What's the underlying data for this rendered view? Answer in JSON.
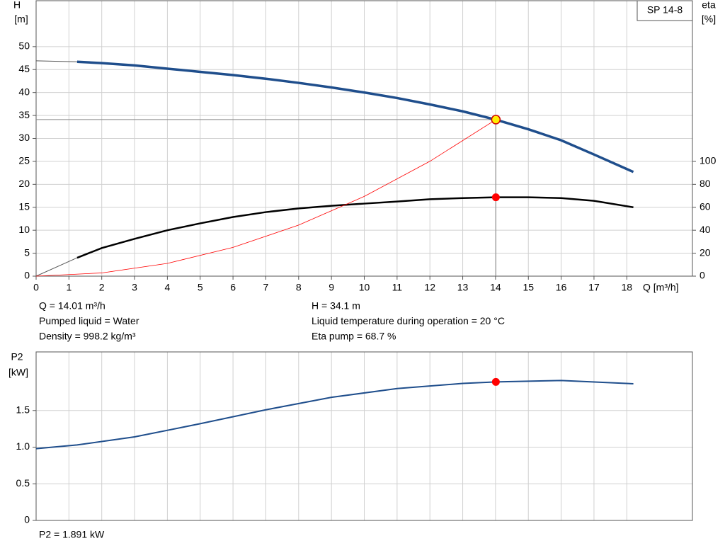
{
  "chart_data": [
    {
      "type": "line",
      "label": "SP 14-8",
      "ylabel": "H",
      "yunit": "[m]",
      "y2label": "eta",
      "y2unit": "[%]",
      "xlabel": "Q [m³/h]",
      "xlim": [
        0,
        20
      ],
      "xticks": [
        0,
        1,
        2,
        3,
        4,
        5,
        6,
        7,
        8,
        9,
        10,
        11,
        12,
        13,
        14,
        15,
        16,
        17,
        18
      ],
      "ylim": [
        0,
        60
      ],
      "yticks": [
        0,
        5,
        10,
        15,
        20,
        25,
        30,
        35,
        40,
        45,
        50
      ],
      "y2lim": [
        0,
        240
      ],
      "y2ticks": [
        0,
        20,
        40,
        60,
        80,
        100
      ],
      "grid": true,
      "series": [
        {
          "color": "#555555",
          "width": 1,
          "x": [
            0,
            1.25
          ],
          "values": [
            46.9,
            46.7
          ]
        },
        {
          "color": "#1f4e8c",
          "width": 3.5,
          "x": [
            1.25,
            2,
            3,
            4,
            5,
            6,
            7,
            8,
            9,
            10,
            11,
            12,
            13,
            14,
            15,
            16,
            17,
            18.2
          ],
          "values": [
            46.7,
            46.4,
            45.9,
            45.2,
            44.5,
            43.8,
            43.0,
            42.1,
            41.1,
            40.0,
            38.8,
            37.4,
            35.9,
            34.1,
            32.0,
            29.6,
            26.5,
            22.7
          ]
        },
        {
          "color": "#555555",
          "width": 1,
          "axis": "y2",
          "x": [
            0,
            1.25
          ],
          "values": [
            0,
            16
          ]
        },
        {
          "color": "#000000",
          "width": 2.5,
          "axis": "y2",
          "x": [
            1.25,
            2,
            3,
            4,
            5,
            6,
            7,
            8,
            9,
            10,
            11,
            12,
            13,
            14,
            15,
            16,
            17,
            18.2
          ],
          "values": [
            16,
            24.5,
            32.5,
            40,
            46,
            51.5,
            55.8,
            59,
            61.3,
            63.2,
            65,
            67,
            68,
            68.7,
            68.7,
            68,
            65.6,
            60
          ]
        },
        {
          "color": "#ff0000",
          "width": 0.8,
          "x": [
            0,
            2,
            4,
            6,
            8,
            10,
            12,
            14.01
          ],
          "values": [
            0,
            0.7,
            2.78,
            6.26,
            11.12,
            17.37,
            25.02,
            34.1
          ]
        }
      ],
      "duty_point": {
        "x": 14.01,
        "y": 34.1,
        "y2": 68.7
      },
      "notes": [
        [
          "Q = 14.01 m³/h",
          "Pumped liquid = Water",
          "Density = 998.2 kg/m³"
        ],
        [
          "H = 34.1 m",
          "Liquid temperature during operation = 20 °C",
          "Eta pump = 68.7 %"
        ]
      ]
    },
    {
      "type": "line",
      "ylabel": "P2",
      "yunit": "[kW]",
      "xlim": [
        0,
        20
      ],
      "ylim": [
        0,
        2.3
      ],
      "yticks": [
        0,
        0.5,
        {
          "value": 1,
          "label": "1.0"
        },
        1.5
      ],
      "grid": true,
      "series": [
        {
          "color": "#1f4e8c",
          "width": 2,
          "x": [
            0,
            1.25,
            3,
            5,
            7,
            9,
            11,
            13,
            14.01,
            16,
            18.2
          ],
          "values": [
            0.98,
            1.03,
            1.14,
            1.32,
            1.51,
            1.68,
            1.8,
            1.87,
            1.891,
            1.91,
            1.865
          ]
        }
      ],
      "duty_point": {
        "x": 14.01,
        "y": 1.891
      },
      "notes": [
        [
          "P2 = 1.891 kW"
        ]
      ]
    }
  ]
}
